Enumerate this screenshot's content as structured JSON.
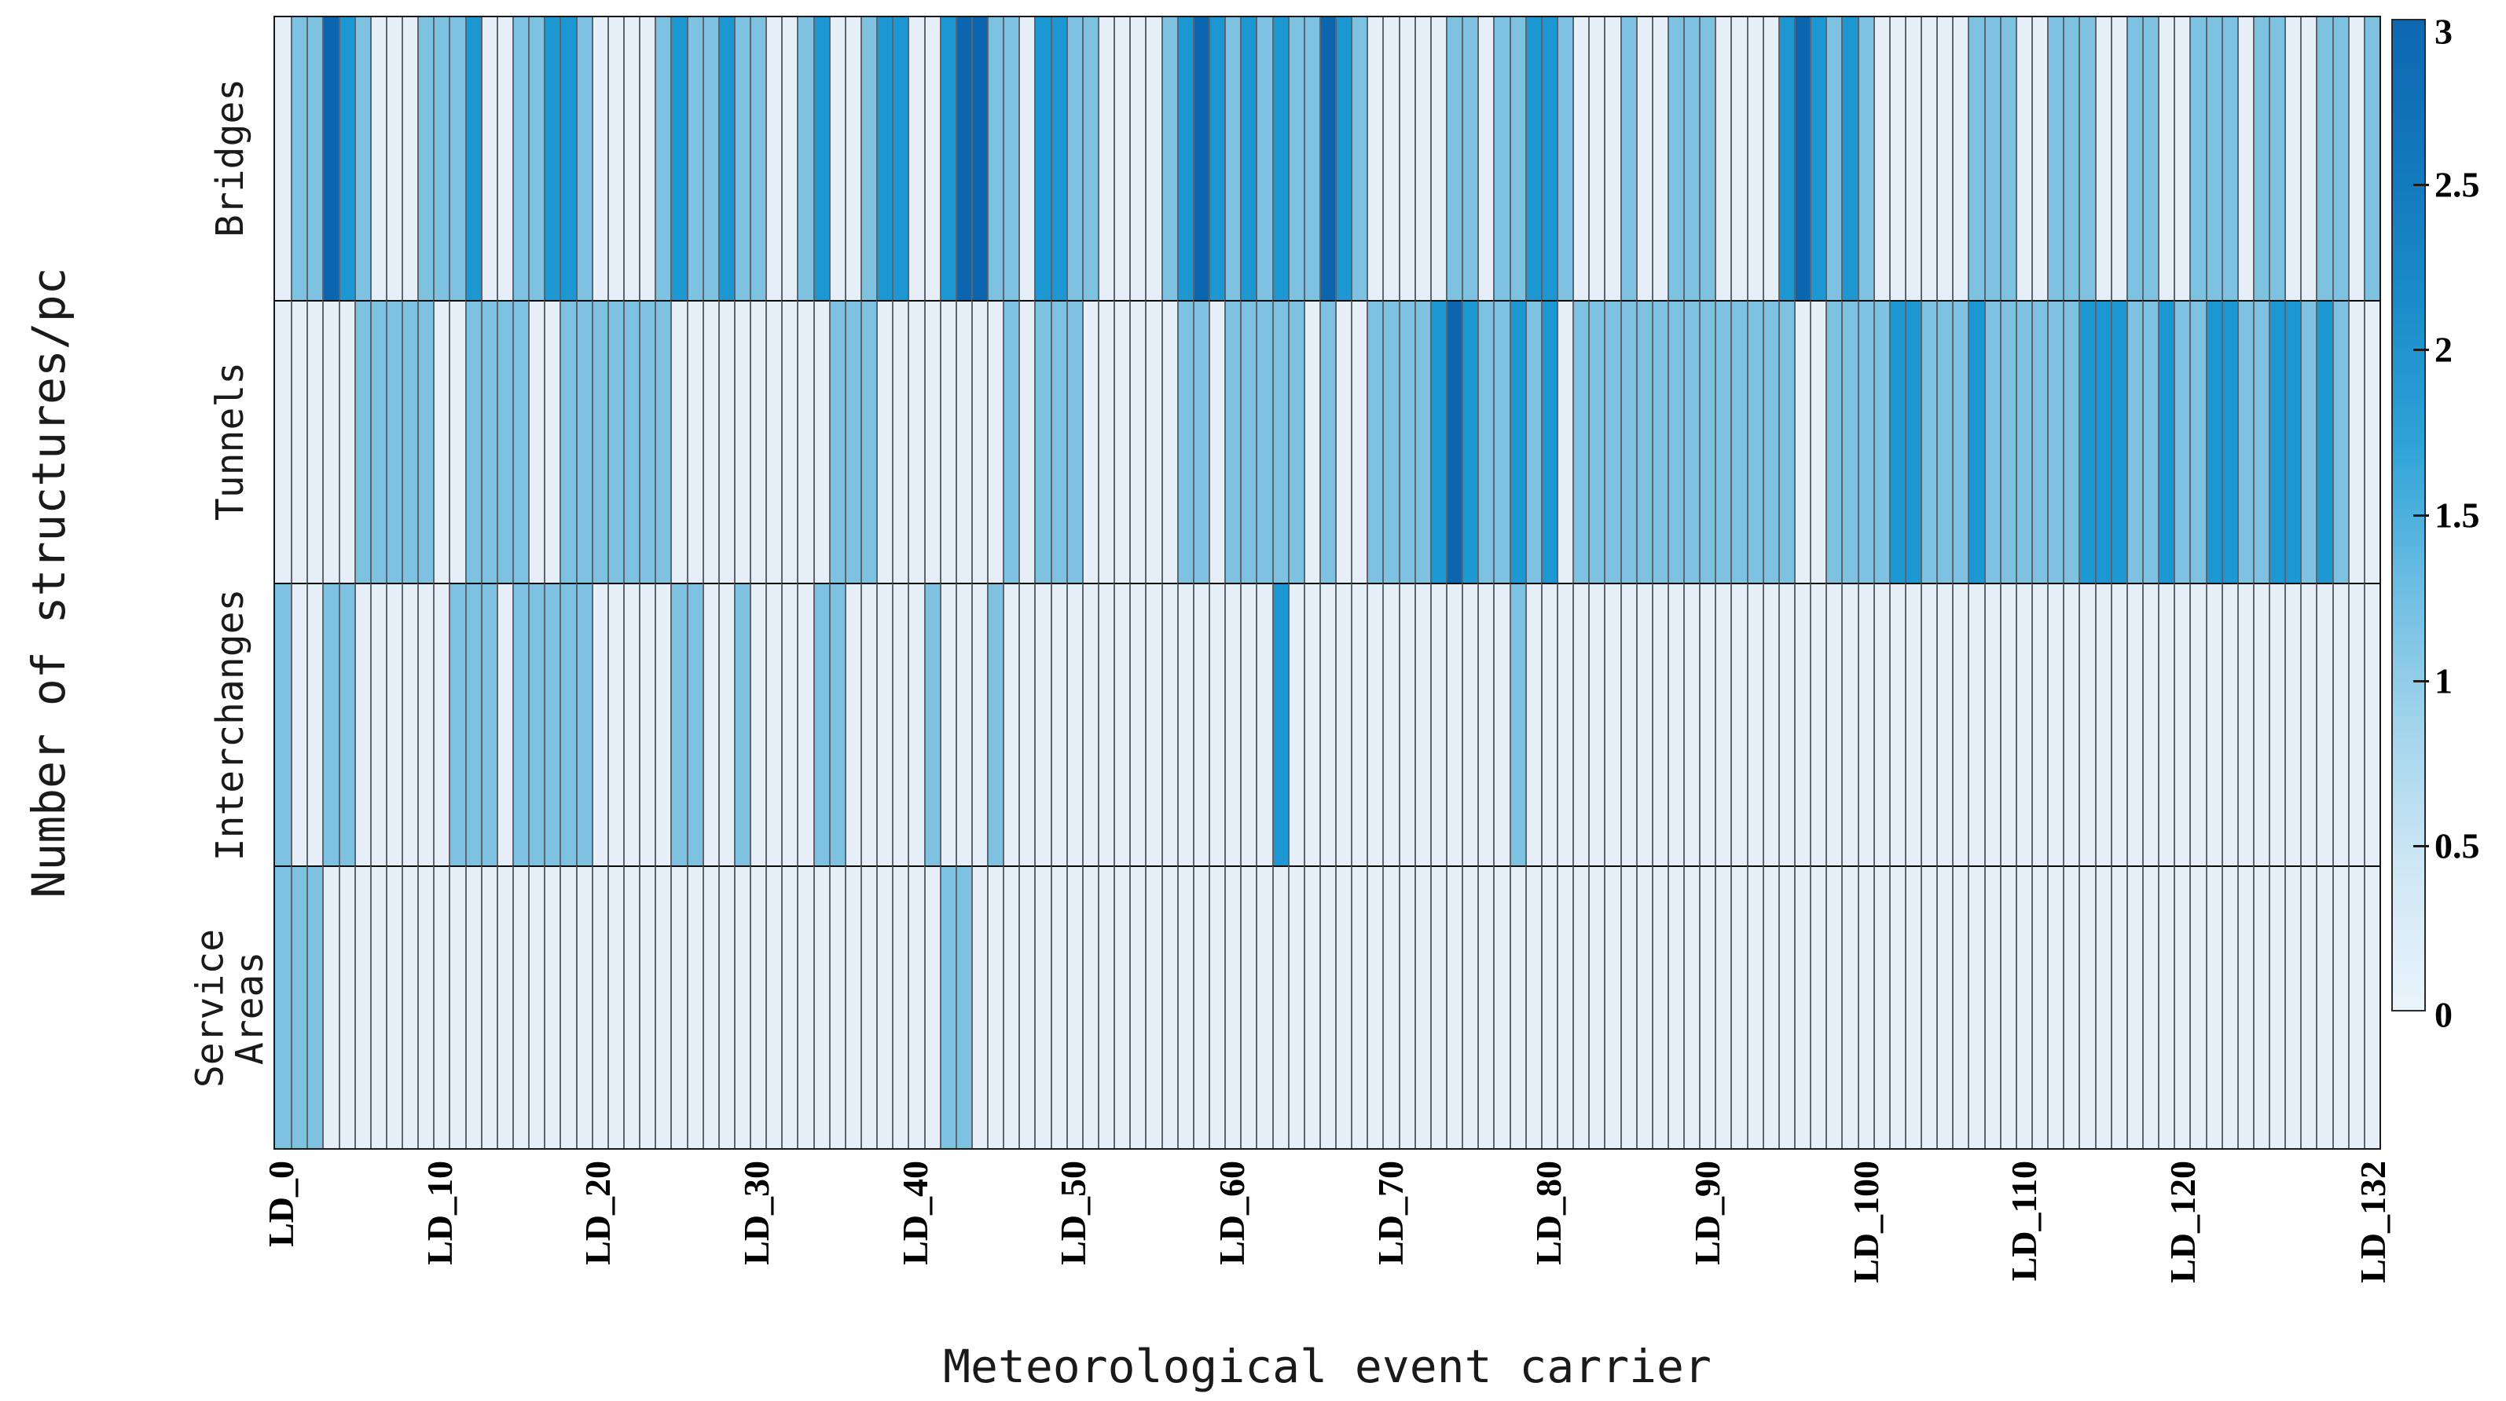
{
  "figure": {
    "y_axis_title": "Number of structures/pc",
    "x_axis_title": "Meteorological event carrier",
    "row_label_lines": [
      "Bridges",
      "Tunnels",
      "Interchanges",
      "Service\nAreas"
    ],
    "colorbar": {
      "min": 0,
      "max": 3,
      "tick_labels": [
        "3",
        "2.5",
        "2",
        "1.5",
        "1",
        "0.5",
        "0"
      ]
    }
  },
  "chart_data": {
    "type": "heatmap",
    "title": "",
    "xlabel": "Meteorological event carrier",
    "ylabel": "Number of structures/pc",
    "n_columns": 133,
    "x_label_prefix": "LD_",
    "x_ticks": [
      {
        "col": 0,
        "label": "LD_0"
      },
      {
        "col": 10,
        "label": "LD_10"
      },
      {
        "col": 20,
        "label": "LD_20"
      },
      {
        "col": 30,
        "label": "LD_30"
      },
      {
        "col": 40,
        "label": "LD_40"
      },
      {
        "col": 50,
        "label": "LD_50"
      },
      {
        "col": 60,
        "label": "LD_60"
      },
      {
        "col": 70,
        "label": "LD_70"
      },
      {
        "col": 80,
        "label": "LD_80"
      },
      {
        "col": 90,
        "label": "LD_90"
      },
      {
        "col": 100,
        "label": "LD_100"
      },
      {
        "col": 110,
        "label": "LD_110"
      },
      {
        "col": 120,
        "label": "LD_120"
      },
      {
        "col": 132,
        "label": "LD_132"
      }
    ],
    "rows": [
      "Bridges",
      "Tunnels",
      "Interchanges",
      "Service Areas"
    ],
    "value_range": [
      0,
      3
    ],
    "legend_position": "right-colorbar",
    "grid": true,
    "level_colors": {
      "0": "#e6eff7",
      "1": "#7fc1e1",
      "2": "#1c97d2",
      "3": "#0b66af"
    },
    "colorbar_gradient_top_to_bottom": [
      "#0d68b1",
      "#1377bc",
      "#1b8cc9",
      "#2fa3d7",
      "#6cbde2",
      "#a3d4ec",
      "#cfe7f5",
      "#eaf4fb"
    ],
    "series": [
      {
        "name": "Bridges",
        "values": [
          0,
          1,
          1,
          3,
          2,
          1,
          0,
          0,
          0,
          1,
          1,
          1,
          2,
          0,
          0,
          1,
          1,
          2,
          2,
          1,
          0,
          0,
          0,
          0,
          1,
          2,
          1,
          1,
          2,
          1,
          1,
          0,
          0,
          1,
          2,
          0,
          0,
          1,
          2,
          2,
          0,
          0,
          2,
          3,
          3,
          1,
          1,
          0,
          2,
          2,
          1,
          1,
          0,
          0,
          0,
          0,
          1,
          2,
          3,
          2,
          1,
          2,
          1,
          2,
          1,
          1,
          3,
          2,
          1,
          0,
          0,
          0,
          0,
          0,
          1,
          1,
          0,
          1,
          1,
          2,
          2,
          1,
          0,
          0,
          0,
          1,
          0,
          0,
          1,
          1,
          1,
          0,
          0,
          0,
          0,
          2,
          3,
          2,
          1,
          2,
          1,
          0,
          0,
          0,
          0,
          0,
          0,
          1,
          1,
          1,
          0,
          0,
          1,
          1,
          1,
          0,
          0,
          1,
          1,
          0,
          0,
          1,
          1,
          1,
          0,
          1,
          1,
          0,
          0,
          1,
          1,
          0,
          1
        ]
      },
      {
        "name": "Tunnels",
        "values": [
          0,
          0,
          0,
          0,
          0,
          1,
          1,
          1,
          1,
          1,
          0,
          0,
          1,
          1,
          1,
          1,
          0,
          0,
          1,
          1,
          1,
          1,
          1,
          1,
          1,
          0,
          0,
          0,
          0,
          0,
          0,
          0,
          0,
          0,
          0,
          1,
          1,
          1,
          0,
          0,
          0,
          0,
          0,
          0,
          0,
          0,
          1,
          0,
          1,
          1,
          1,
          0,
          0,
          0,
          0,
          0,
          0,
          1,
          1,
          0,
          1,
          1,
          1,
          1,
          1,
          0,
          1,
          0,
          0,
          1,
          1,
          1,
          1,
          2,
          3,
          2,
          1,
          1,
          2,
          1,
          2,
          0,
          1,
          1,
          1,
          1,
          1,
          1,
          1,
          1,
          1,
          1,
          1,
          1,
          1,
          1,
          0,
          0,
          1,
          1,
          1,
          1,
          2,
          2,
          1,
          1,
          1,
          2,
          1,
          1,
          1,
          1,
          1,
          1,
          2,
          2,
          2,
          1,
          1,
          2,
          1,
          1,
          2,
          2,
          1,
          1,
          2,
          2,
          1,
          2,
          1,
          0,
          0
        ]
      },
      {
        "name": "Interchanges",
        "values": [
          1,
          0,
          0,
          1,
          1,
          0,
          0,
          0,
          0,
          0,
          0,
          1,
          1,
          1,
          0,
          1,
          1,
          1,
          1,
          1,
          0,
          0,
          0,
          0,
          0,
          1,
          1,
          0,
          0,
          1,
          0,
          0,
          0,
          0,
          1,
          1,
          0,
          0,
          0,
          0,
          0,
          1,
          0,
          0,
          0,
          1,
          0,
          0,
          0,
          0,
          0,
          0,
          0,
          0,
          0,
          0,
          0,
          0,
          0,
          0,
          0,
          0,
          0,
          2,
          0,
          0,
          0,
          0,
          0,
          0,
          0,
          0,
          0,
          0,
          0,
          0,
          0,
          0,
          1,
          0,
          0,
          0,
          0,
          0,
          0,
          0,
          0,
          0,
          0,
          0,
          0,
          0,
          0,
          0,
          0,
          0,
          0,
          0,
          0,
          0,
          0,
          0,
          0,
          0,
          0,
          0,
          0,
          0,
          0,
          0,
          0,
          0,
          0,
          0,
          0,
          0,
          0,
          0,
          0,
          0,
          0,
          0,
          0,
          0,
          0,
          0,
          0,
          0,
          0,
          0,
          0,
          0,
          0
        ]
      },
      {
        "name": "Service Areas",
        "values": [
          1,
          1,
          1,
          0,
          0,
          0,
          0,
          0,
          0,
          0,
          0,
          0,
          0,
          0,
          0,
          0,
          0,
          0,
          0,
          0,
          0,
          0,
          0,
          0,
          0,
          0,
          0,
          0,
          0,
          0,
          0,
          0,
          0,
          0,
          0,
          0,
          0,
          0,
          0,
          0,
          0,
          0,
          1,
          1,
          0,
          0,
          0,
          0,
          0,
          0,
          0,
          0,
          0,
          0,
          0,
          0,
          0,
          0,
          0,
          0,
          0,
          0,
          0,
          0,
          0,
          0,
          0,
          0,
          0,
          0,
          0,
          0,
          0,
          0,
          0,
          0,
          0,
          0,
          0,
          0,
          0,
          0,
          0,
          0,
          0,
          0,
          0,
          0,
          0,
          0,
          0,
          0,
          0,
          0,
          0,
          0,
          0,
          0,
          0,
          0,
          0,
          0,
          0,
          0,
          0,
          0,
          0,
          0,
          0,
          0,
          0,
          0,
          0,
          0,
          0,
          0,
          0,
          0,
          0,
          0,
          0,
          0,
          0,
          0,
          0,
          0,
          0,
          0,
          0,
          0,
          0,
          0,
          0
        ]
      }
    ]
  }
}
